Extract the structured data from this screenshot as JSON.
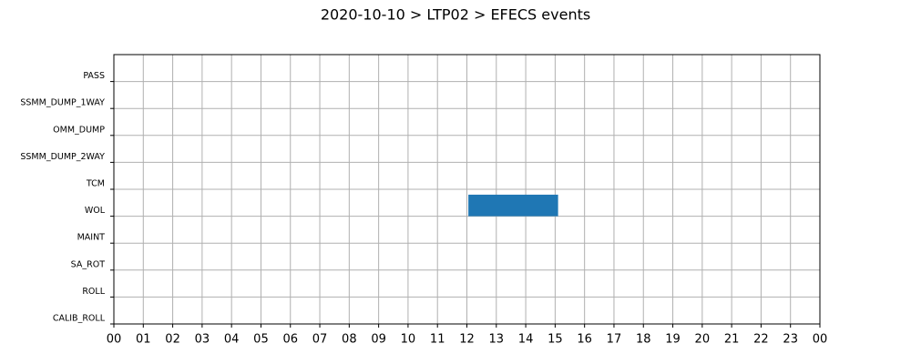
{
  "chart_data": {
    "type": "timeline",
    "title": "2020-10-10 > LTP02 > EFECS events",
    "categories": [
      "PASS",
      "SSMM_DUMP_1WAY",
      "OMM_DUMP",
      "SSMM_DUMP_2WAY",
      "TCM",
      "WOL",
      "MAINT",
      "SA_ROT",
      "ROLL",
      "CALIB_ROLL"
    ],
    "events": [
      {
        "category": "WOL",
        "start": 12.05,
        "end": 15.1
      }
    ],
    "color": "#1f77b4",
    "xlim": [
      0,
      24
    ],
    "xticks": [
      {
        "value": 0,
        "label": "00"
      },
      {
        "value": 1,
        "label": "01"
      },
      {
        "value": 2,
        "label": "02"
      },
      {
        "value": 3,
        "label": "03"
      },
      {
        "value": 4,
        "label": "04"
      },
      {
        "value": 5,
        "label": "05"
      },
      {
        "value": 6,
        "label": "06"
      },
      {
        "value": 7,
        "label": "07"
      },
      {
        "value": 8,
        "label": "08"
      },
      {
        "value": 9,
        "label": "09"
      },
      {
        "value": 10,
        "label": "10"
      },
      {
        "value": 11,
        "label": "11"
      },
      {
        "value": 12,
        "label": "12"
      },
      {
        "value": 13,
        "label": "13"
      },
      {
        "value": 14,
        "label": "14"
      },
      {
        "value": 15,
        "label": "15"
      },
      {
        "value": 16,
        "label": "16"
      },
      {
        "value": 17,
        "label": "17"
      },
      {
        "value": 18,
        "label": "18"
      },
      {
        "value": 19,
        "label": "19"
      },
      {
        "value": 20,
        "label": "20"
      },
      {
        "value": 21,
        "label": "21"
      },
      {
        "value": 22,
        "label": "22"
      },
      {
        "value": 23,
        "label": "23"
      },
      {
        "value": 24,
        "label": "00"
      }
    ],
    "grid": true
  }
}
